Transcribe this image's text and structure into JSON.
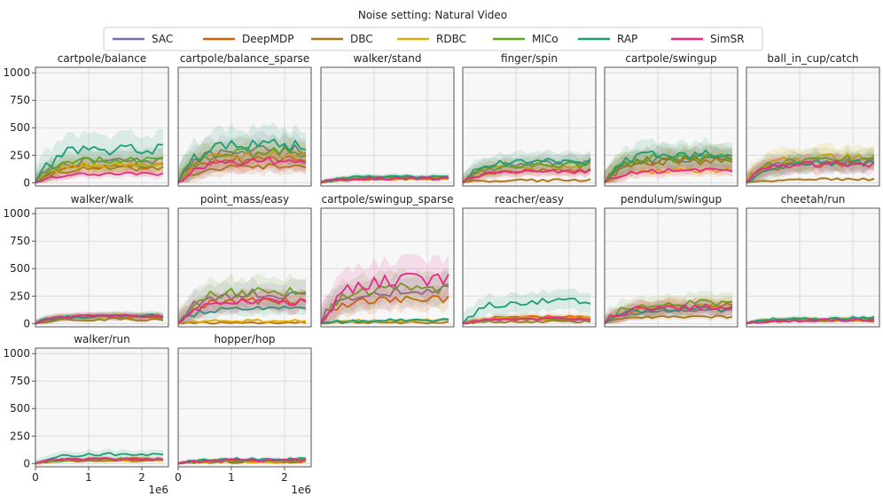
{
  "figure": {
    "title": "Noise setting: Natural Video",
    "x_multiplier_label": "1e6"
  },
  "legend": [
    {
      "name": "SAC",
      "color": "#7570b3"
    },
    {
      "name": "DeepMDP",
      "color": "#d95f02"
    },
    {
      "name": "DBC",
      "color": "#a6761d"
    },
    {
      "name": "RDBC",
      "color": "#e6ab02"
    },
    {
      "name": "MICo",
      "color": "#66a61e"
    },
    {
      "name": "RAP",
      "color": "#1b9e77"
    },
    {
      "name": "SimSR",
      "color": "#e7298a"
    }
  ],
  "chart_data": {
    "type": "line",
    "grid": true,
    "legend_placement": "top-center",
    "xlim": [
      0,
      2.5
    ],
    "ylim": [
      0,
      1000
    ],
    "x_ticks": [
      0,
      1,
      2
    ],
    "y_ticks": [
      0,
      250,
      500,
      750,
      1000
    ],
    "x": [
      0,
      0.1,
      0.2,
      0.3,
      0.4,
      0.5,
      0.6,
      0.7,
      0.8,
      0.9,
      1.0,
      1.1,
      1.2,
      1.3,
      1.4,
      1.5,
      1.6,
      1.7,
      1.8,
      1.9,
      2.0,
      2.1,
      2.2,
      2.3,
      2.4
    ],
    "series_names": [
      "SAC",
      "DeepMDP",
      "DBC",
      "RDBC",
      "MICo",
      "RAP",
      "SimSR"
    ],
    "panels": [
      {
        "title": "cartpole/balance",
        "finals": [
          200,
          150,
          130,
          170,
          210,
          310,
          80
        ]
      },
      {
        "title": "cartpole/balance_sparse",
        "finals": [
          300,
          220,
          150,
          260,
          280,
          340,
          200
        ]
      },
      {
        "title": "walker/stand",
        "finals": [
          45,
          40,
          35,
          40,
          45,
          55,
          40
        ]
      },
      {
        "title": "finger/spin",
        "finals": [
          170,
          110,
          20,
          150,
          160,
          190,
          100
        ]
      },
      {
        "title": "cartpole/swingup",
        "finals": [
          230,
          200,
          220,
          110,
          230,
          260,
          110
        ]
      },
      {
        "title": "ball_in_cup/catch",
        "finals": [
          200,
          170,
          30,
          230,
          210,
          180,
          170
        ]
      },
      {
        "title": "walker/walk",
        "finals": [
          65,
          60,
          40,
          70,
          70,
          75,
          70
        ]
      },
      {
        "title": "point_mass/easy",
        "finals": [
          270,
          210,
          5,
          25,
          290,
          140,
          200
        ]
      },
      {
        "title": "cartpole/swingup_sparse",
        "finals": [
          300,
          220,
          10,
          30,
          320,
          30,
          400
        ]
      },
      {
        "title": "reacher/easy",
        "finals": [
          40,
          60,
          20,
          50,
          40,
          200,
          40
        ]
      },
      {
        "title": "pendulum/swingup",
        "finals": [
          120,
          160,
          60,
          150,
          190,
          130,
          150
        ]
      },
      {
        "title": "cheetah/run",
        "finals": [
          30,
          35,
          25,
          35,
          40,
          50,
          30
        ]
      },
      {
        "title": "walker/run",
        "finals": [
          35,
          40,
          30,
          35,
          40,
          85,
          40
        ]
      },
      {
        "title": "hopper/hop",
        "finals": [
          25,
          20,
          15,
          20,
          30,
          40,
          30
        ]
      }
    ]
  }
}
